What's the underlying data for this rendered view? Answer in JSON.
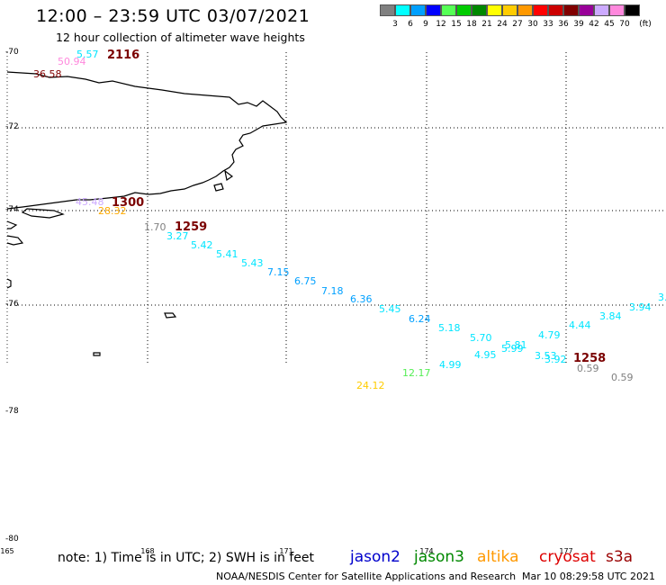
{
  "title": "12:00 – 23:59 UTC 03/07/2021",
  "subtitle": "12 hour collection of altimeter wave heights",
  "legend": {
    "colors": [
      "#808080",
      "#00ffff",
      "#00a0ff",
      "#0000ff",
      "#55ff55",
      "#00cc00",
      "#008800",
      "#ffff00",
      "#ffcc00",
      "#ff9900",
      "#ff0000",
      "#cc0000",
      "#800000",
      "#990099",
      "#ccaaff",
      "#ff88dd",
      "#000000"
    ],
    "labels": [
      "3",
      "6",
      "9",
      "12",
      "15",
      "18",
      "21",
      "24",
      "27",
      "30",
      "33",
      "36",
      "39",
      "42",
      "45",
      "70"
    ],
    "unit": "(ft)"
  },
  "map": {
    "lat_labels": [
      "-70",
      "-72",
      "-74",
      "-76",
      "-78",
      "-80"
    ],
    "lon_labels": [
      "165",
      "168",
      "171",
      "174",
      "177"
    ],
    "swh_points": [
      {
        "value": "5.57",
        "color": "#00e5ff"
      },
      {
        "value": "50.94",
        "color": "#ff88dd"
      },
      {
        "value": "36.58",
        "color": "#800000"
      },
      {
        "value": "45.48",
        "color": "#ccaaff"
      },
      {
        "value": "28.32",
        "color": "#ffaa00"
      },
      {
        "value": "1.70",
        "color": "#808080"
      },
      {
        "value": "3.27",
        "color": "#00e5ff"
      },
      {
        "value": "5.42",
        "color": "#00e5ff"
      },
      {
        "value": "5.41",
        "color": "#00e5ff"
      },
      {
        "value": "5.43",
        "color": "#00e5ff"
      },
      {
        "value": "7.15",
        "color": "#00a0ff"
      },
      {
        "value": "6.75",
        "color": "#00a0ff"
      },
      {
        "value": "7.18",
        "color": "#00a0ff"
      },
      {
        "value": "6.36",
        "color": "#00a0ff"
      },
      {
        "value": "5.45",
        "color": "#00e5ff"
      },
      {
        "value": "6.24",
        "color": "#00a0ff"
      },
      {
        "value": "5.18",
        "color": "#00e5ff"
      },
      {
        "value": "5.70",
        "color": "#00e5ff"
      },
      {
        "value": "5.81",
        "color": "#00e5ff"
      },
      {
        "value": "5.99",
        "color": "#00e5ff"
      },
      {
        "value": "4.79",
        "color": "#00e5ff"
      },
      {
        "value": "4.44",
        "color": "#00e5ff"
      },
      {
        "value": "3.84",
        "color": "#00e5ff"
      },
      {
        "value": "3.94",
        "color": "#00e5ff"
      },
      {
        "value": "3.",
        "color": "#00e5ff"
      },
      {
        "value": "4.95",
        "color": "#00e5ff"
      },
      {
        "value": "4.99",
        "color": "#00e5ff"
      },
      {
        "value": "3.53",
        "color": "#00e5ff"
      },
      {
        "value": "3.92",
        "color": "#00e5ff"
      },
      {
        "value": "0.59",
        "color": "#808080"
      },
      {
        "value": "0.59",
        "color": "#808080"
      },
      {
        "value": "12.17",
        "color": "#55ee55"
      },
      {
        "value": "24.12",
        "color": "#ffcc00"
      }
    ],
    "pass_times": [
      "2116",
      "1300",
      "1259",
      "1258"
    ]
  },
  "footer": {
    "note": "note: 1) Time is in UTC; 2) SWH is in feet",
    "satellites": [
      {
        "name": "jason2",
        "color": "#0000cc"
      },
      {
        "name": "jason3",
        "color": "#008800"
      },
      {
        "name": "altika",
        "color": "#ff9900"
      },
      {
        "name": "cryosat",
        "color": "#dd0000"
      },
      {
        "name": "s3a",
        "color": "#990000"
      }
    ],
    "credit": "NOAA/NESDIS Center for Satellite Applications and Research",
    "timestamp": "Mar 10 08:29:58 UTC 2021"
  }
}
